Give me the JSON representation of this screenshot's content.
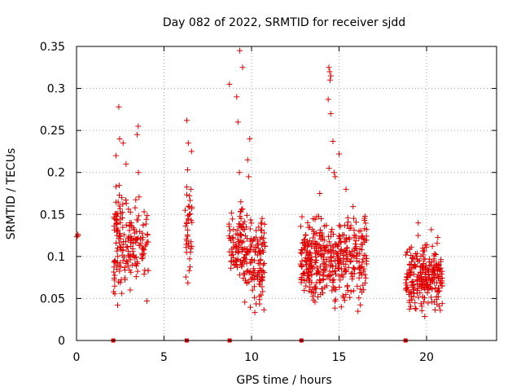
{
  "chart_data": {
    "type": "scatter",
    "title": "Day 082 of 2022, SRMTID for receiver sjdd",
    "xlabel": "GPS time / hours",
    "ylabel": "SRMTID / TECUs",
    "xlim": [
      0,
      24
    ],
    "ylim": [
      0,
      0.35
    ],
    "x_ticks": [
      0,
      5,
      10,
      15,
      20
    ],
    "x_tick_labels": [
      "0",
      "5",
      "10",
      "15",
      "20"
    ],
    "y_ticks": [
      0,
      0.05,
      0.1,
      0.15,
      0.2,
      0.25,
      0.3,
      0.35
    ],
    "y_tick_labels": [
      "0",
      "0.05",
      "0.1",
      "0.15",
      "0.2",
      "0.25",
      "0.3",
      "0.35"
    ],
    "grid": true,
    "marker": "+",
    "series_color": "#e00000",
    "zero_markers_x": [
      2.1,
      6.3,
      8.75,
      12.85,
      18.8
    ],
    "clusters": [
      {
        "x_range": [
          0,
          0.1
        ],
        "y_min": 0.12,
        "y_max": 0.13,
        "n": 3,
        "peaks": []
      },
      {
        "x_range": [
          2.1,
          2.7
        ],
        "y_min": 0.03,
        "y_max": 0.21,
        "n": 80,
        "peaks": [
          0.22,
          0.235,
          0.24,
          0.278
        ]
      },
      {
        "x_range": [
          2.7,
          4.1
        ],
        "y_min": 0.04,
        "y_max": 0.19,
        "n": 110,
        "peaks": [
          0.245,
          0.255,
          0.21,
          0.2
        ]
      },
      {
        "x_range": [
          6.2,
          6.6
        ],
        "y_min": 0.06,
        "y_max": 0.21,
        "n": 40,
        "peaks": [
          0.235,
          0.262,
          0.225
        ]
      },
      {
        "x_range": [
          8.7,
          9.6
        ],
        "y_min": 0.05,
        "y_max": 0.18,
        "n": 90,
        "peaks": [
          0.26,
          0.29,
          0.305,
          0.325,
          0.345,
          0.2
        ]
      },
      {
        "x_range": [
          9.6,
          10.8
        ],
        "y_min": 0.025,
        "y_max": 0.17,
        "n": 130,
        "peaks": [
          0.215,
          0.24,
          0.195
        ]
      },
      {
        "x_range": [
          12.8,
          14.3
        ],
        "y_min": 0.03,
        "y_max": 0.16,
        "n": 190,
        "peaks": [
          0.175,
          0.145
        ]
      },
      {
        "x_range": [
          14.3,
          14.7
        ],
        "y_min": 0.04,
        "y_max": 0.15,
        "n": 40,
        "peaks": [
          0.205,
          0.237,
          0.27,
          0.287,
          0.31,
          0.315,
          0.32,
          0.325
        ]
      },
      {
        "x_range": [
          14.7,
          16.6
        ],
        "y_min": 0.03,
        "y_max": 0.17,
        "n": 190,
        "peaks": [
          0.2,
          0.18,
          0.222,
          0.195
        ]
      },
      {
        "x_range": [
          18.8,
          20.9
        ],
        "y_min": 0.02,
        "y_max": 0.13,
        "n": 240,
        "peaks": [
          0.14,
          0.132,
          0.125
        ]
      }
    ]
  }
}
